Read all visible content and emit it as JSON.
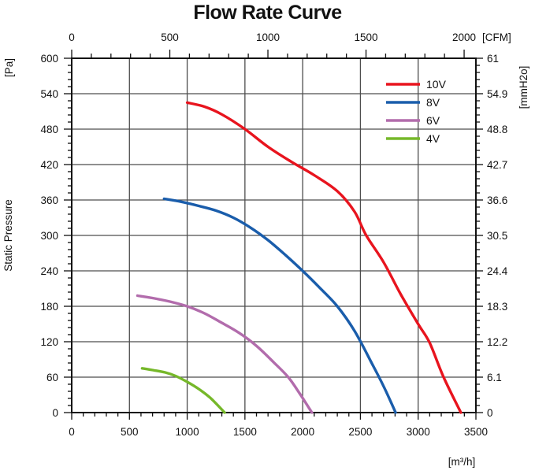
{
  "chart_data": {
    "type": "line",
    "title": "Flow Rate Curve",
    "axes": {
      "bottom": {
        "unit_label": "[m³/h]",
        "min": 0,
        "max": 3500,
        "major_step": 500,
        "minor_step": 100,
        "tick_labels": [
          "0",
          "500",
          "1000",
          "1500",
          "2000",
          "2500",
          "3000",
          "3500"
        ]
      },
      "top": {
        "unit_label": "[CFM]",
        "min": 0,
        "max": 2000,
        "major_step": 500,
        "minor_step": 100,
        "m3h_per_cfm": 1.699,
        "tick_labels": [
          "0",
          "500",
          "1000",
          "1500",
          "2000"
        ]
      },
      "left": {
        "unit_label": "[Pa]",
        "axis_label": "Static Pressure",
        "min": 0,
        "max": 600,
        "major_step": 60,
        "minor_step": 12,
        "tick_labels": [
          "0",
          "60",
          "120",
          "180",
          "240",
          "300",
          "360",
          "420",
          "480",
          "540",
          "600"
        ]
      },
      "right": {
        "unit_label": "[mmH2o]",
        "tick_labels_top_to_bottom": [
          "61",
          "54.9",
          "48.8",
          "42.7",
          "36.6",
          "30.5",
          "24.4",
          "18.3",
          "12.2",
          "6.1",
          "0"
        ]
      }
    },
    "grid": {
      "show": true,
      "color": "#4d4d4d"
    },
    "frame_color": "#111111",
    "legend": {
      "position": "top-right",
      "entries": [
        "10V",
        "8V",
        "6V",
        "4V"
      ]
    },
    "series": [
      {
        "name": "10V",
        "color": "#e8141e",
        "points": [
          [
            1000,
            525
          ],
          [
            1150,
            518
          ],
          [
            1300,
            505
          ],
          [
            1500,
            480
          ],
          [
            1700,
            450
          ],
          [
            1900,
            425
          ],
          [
            2100,
            402
          ],
          [
            2300,
            375
          ],
          [
            2450,
            340
          ],
          [
            2550,
            300
          ],
          [
            2700,
            255
          ],
          [
            2850,
            200
          ],
          [
            3000,
            150
          ],
          [
            3100,
            118
          ],
          [
            3220,
            60
          ],
          [
            3370,
            0
          ]
        ]
      },
      {
        "name": "8V",
        "color": "#1a5dab",
        "points": [
          [
            800,
            362
          ],
          [
            950,
            357
          ],
          [
            1100,
            350
          ],
          [
            1250,
            342
          ],
          [
            1400,
            330
          ],
          [
            1550,
            313
          ],
          [
            1700,
            292
          ],
          [
            1850,
            267
          ],
          [
            2000,
            240
          ],
          [
            2150,
            211
          ],
          [
            2300,
            180
          ],
          [
            2450,
            138
          ],
          [
            2600,
            83
          ],
          [
            2700,
            45
          ],
          [
            2805,
            0
          ]
        ]
      },
      {
        "name": "6V",
        "color": "#b26cac",
        "points": [
          [
            570,
            198
          ],
          [
            700,
            194
          ],
          [
            850,
            188
          ],
          [
            1000,
            180
          ],
          [
            1150,
            168
          ],
          [
            1300,
            152
          ],
          [
            1450,
            135
          ],
          [
            1600,
            113
          ],
          [
            1750,
            85
          ],
          [
            1875,
            60
          ],
          [
            1975,
            32
          ],
          [
            2080,
            0
          ]
        ]
      },
      {
        "name": "4V",
        "color": "#76b82a",
        "points": [
          [
            610,
            75
          ],
          [
            700,
            72
          ],
          [
            810,
            68
          ],
          [
            900,
            62
          ],
          [
            1000,
            52
          ],
          [
            1100,
            40
          ],
          [
            1200,
            25
          ],
          [
            1325,
            0
          ]
        ]
      }
    ]
  }
}
